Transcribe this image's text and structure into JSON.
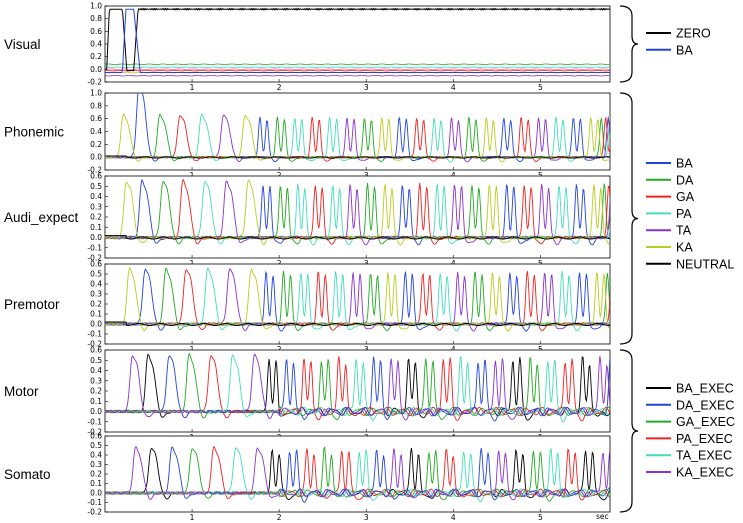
{
  "chart_data": {
    "type": "line",
    "xlabel": "sec",
    "xlim": [
      0,
      5.8
    ],
    "x_ticks": [
      "1",
      "2",
      "3",
      "4",
      "5"
    ],
    "x_tick_values": [
      1,
      2,
      3,
      4,
      5
    ],
    "grid": false,
    "legend_placement": "right",
    "panels": [
      {
        "label": "Visual",
        "ylim": [
          -0.2,
          1.0
        ],
        "yticks": [
          "1.0",
          "0.8",
          "0.6",
          "0.4",
          "0.2",
          "0.0",
          "-0.2"
        ],
        "group": 0
      },
      {
        "label": "Phonemic",
        "ylim": [
          -0.2,
          1.0
        ],
        "yticks": [
          "1.0",
          "0.8",
          "0.6",
          "0.4",
          "0.2",
          "0.0",
          "-0.2"
        ],
        "group": 1
      },
      {
        "label": "Audi_expect",
        "ylim": [
          -0.2,
          0.6
        ],
        "yticks": [
          "0.6",
          "0.5",
          "0.4",
          "0.3",
          "0.2",
          "0.1",
          "0.0",
          "-0.1",
          "-0.2"
        ],
        "group": 1
      },
      {
        "label": "Premotor",
        "ylim": [
          -0.2,
          0.6
        ],
        "yticks": [
          "0.6",
          "0.5",
          "0.4",
          "0.3",
          "0.2",
          "0.1",
          "0.0",
          "-0.1",
          "-0.2"
        ],
        "group": 1
      },
      {
        "label": "Motor",
        "ylim": [
          -0.2,
          0.6
        ],
        "yticks": [
          "0.6",
          "0.5",
          "0.4",
          "0.3",
          "0.2",
          "0.1",
          "0.0",
          "-0.1",
          "-0.2"
        ],
        "group": 2
      },
      {
        "label": "Somato",
        "ylim": [
          -0.2,
          0.6
        ],
        "yticks": [
          "0.6",
          "0.5",
          "0.4",
          "0.3",
          "0.2",
          "0.1",
          "0.0",
          "-0.1",
          "-0.2"
        ],
        "group": 2
      }
    ],
    "legends": [
      {
        "group": 0,
        "entries": [
          {
            "name": "ZERO",
            "color": "#000000"
          },
          {
            "name": "BA",
            "color": "#2244dd"
          }
        ]
      },
      {
        "group": 1,
        "entries": [
          {
            "name": "BA",
            "color": "#2244dd"
          },
          {
            "name": "DA",
            "color": "#22aa22"
          },
          {
            "name": "GA",
            "color": "#ee2222"
          },
          {
            "name": "PA",
            "color": "#44ddbb"
          },
          {
            "name": "TA",
            "color": "#8833cc"
          },
          {
            "name": "KA",
            "color": "#bbcc22"
          },
          {
            "name": "NEUTRAL",
            "color": "#000000"
          }
        ]
      },
      {
        "group": 2,
        "entries": [
          {
            "name": "BA_EXEC",
            "color": "#000000"
          },
          {
            "name": "DA_EXEC",
            "color": "#2244dd"
          },
          {
            "name": "GA_EXEC",
            "color": "#22aa22"
          },
          {
            "name": "PA_EXEC",
            "color": "#ee2222"
          },
          {
            "name": "TA_EXEC",
            "color": "#44ddbb"
          },
          {
            "name": "KA_EXEC",
            "color": "#8833cc"
          }
        ]
      }
    ],
    "syllable_sequence": [
      "KA",
      "BA",
      "DA",
      "GA",
      "PA",
      "TA",
      "KA",
      "BA",
      "DA",
      "PA",
      "GA",
      "PA",
      "TA",
      "DA",
      "KA",
      "BA",
      "GA",
      "PA",
      "TA",
      "DA",
      "KA",
      "BA",
      "GA",
      "TA",
      "PA",
      "BA",
      "KA",
      "DA",
      "GA",
      "TA",
      "PA"
    ],
    "syllable_onsets_sec": [
      0.2,
      0.38,
      0.62,
      0.85,
      1.1,
      1.35,
      1.6,
      1.78,
      1.98,
      2.18,
      2.38,
      2.58,
      2.78,
      2.98,
      3.18,
      3.38,
      3.58,
      3.78,
      3.98,
      4.18,
      4.38,
      4.58,
      4.78,
      4.98,
      5.18,
      5.38,
      5.58,
      5.7,
      5.75,
      5.78,
      5.8
    ],
    "series": [
      {
        "panel": "Visual",
        "name": "ZERO",
        "peak": 0.95,
        "active": [
          [
            0.02,
            0.22
          ],
          [
            0.33,
            5.8
          ]
        ]
      },
      {
        "panel": "Visual",
        "name": "BA",
        "peak": 0.95,
        "active": [
          [
            0.2,
            0.34
          ]
        ]
      },
      {
        "panel": "Phonemic",
        "name": "peaks",
        "peak_first": 0.95,
        "peak_typical": 0.62
      },
      {
        "panel": "Audi_expect",
        "name": "peaks",
        "peak_typical": 0.52
      },
      {
        "panel": "Premotor",
        "name": "peaks",
        "peak_typical": 0.52
      },
      {
        "panel": "Motor",
        "name": "peaks",
        "peak_typical": 0.52
      },
      {
        "panel": "Somato",
        "name": "peaks",
        "peak_typical": 0.48
      }
    ]
  }
}
